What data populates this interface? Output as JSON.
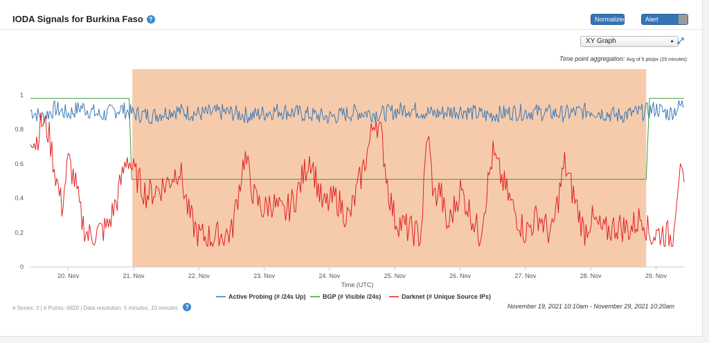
{
  "header": {
    "title": "IODA Signals for Burkina Faso",
    "normalized_label": "Normalized",
    "alert_bands_label": "Alert Bands"
  },
  "controls": {
    "graph_type": "XY Graph",
    "aggregation_label": "Time point aggregation:",
    "aggregation_value": "Avg of 5 pts/px (25 minutes)"
  },
  "footer": {
    "series_label": "# Series:",
    "series_count": "3",
    "points_label": "# Points:",
    "points_count": "6820",
    "resolution_label": "Data resolution:",
    "resolution_value": "5 minutes, 10 minutes",
    "date_range": "November 19, 2021 10:10am - November 29, 2021 10:20am"
  },
  "colors": {
    "active_probing": "#3a78b5",
    "bgp": "#3c9a3c",
    "darknet": "#e02020",
    "outage_band": "#f6cbac"
  },
  "chart_data": {
    "type": "line",
    "xlabel": "Time (UTC)",
    "ylabel": "",
    "x_ticks": [
      "20. Nov",
      "21. Nov",
      "22. Nov",
      "23. Nov",
      "24. Nov",
      "25. Nov",
      "26. Nov",
      "27. Nov",
      "28. Nov",
      "29. Nov"
    ],
    "x_tick_days": [
      20,
      21,
      22,
      23,
      24,
      25,
      26,
      27,
      28,
      29
    ],
    "y_ticks": [
      "0",
      "0.2",
      "0.4",
      "0.6",
      "0.8",
      "1"
    ],
    "ylim": [
      0,
      1.15
    ],
    "xlim_days": [
      19.42,
      29.43
    ],
    "grid": false,
    "legend_position": "bottom",
    "outage_band_days": [
      20.98,
      28.85
    ],
    "series": [
      {
        "name": "Active Probing (# /24s Up)",
        "key": "active",
        "x": [
          19.42,
          19.6,
          19.8,
          20.0,
          20.2,
          20.5,
          20.8,
          21.0,
          21.3,
          21.6,
          22.0,
          22.4,
          22.8,
          23.2,
          23.6,
          24.0,
          24.4,
          24.8,
          25.2,
          25.6,
          26.0,
          26.4,
          26.8,
          27.2,
          27.6,
          28.0,
          28.4,
          28.8,
          29.0,
          29.2,
          29.43
        ],
        "y": [
          0.91,
          0.87,
          0.92,
          0.89,
          0.93,
          0.88,
          0.92,
          0.89,
          0.88,
          0.91,
          0.89,
          0.9,
          0.88,
          0.91,
          0.89,
          0.87,
          0.9,
          0.89,
          0.92,
          0.89,
          0.91,
          0.88,
          0.9,
          0.9,
          0.89,
          0.91,
          0.88,
          0.9,
          0.92,
          0.89,
          0.95
        ]
      },
      {
        "name": "BGP (# Visible /24s)",
        "key": "bgp",
        "x": [
          19.42,
          20.93,
          20.97,
          26.3,
          27.35,
          28.85,
          28.9,
          29.43
        ],
        "y": [
          0.98,
          0.98,
          0.51,
          0.51,
          0.51,
          0.51,
          0.98,
          0.98
        ]
      },
      {
        "name": "Darknet (# Unique Source IPs)",
        "key": "darknet",
        "x": [
          19.42,
          19.5,
          19.6,
          19.7,
          19.8,
          19.9,
          20.0,
          20.1,
          20.2,
          20.3,
          20.45,
          20.6,
          20.75,
          20.9,
          21.0,
          21.2,
          21.5,
          21.7,
          21.85,
          22.0,
          22.2,
          22.5,
          22.7,
          22.85,
          23.0,
          23.1,
          23.3,
          23.5,
          23.7,
          23.9,
          24.1,
          24.3,
          24.5,
          24.6,
          24.7,
          24.8,
          24.9,
          25.0,
          25.2,
          25.4,
          25.5,
          25.6,
          25.7,
          25.8,
          26.0,
          26.2,
          26.3,
          26.5,
          26.6,
          26.8,
          27.0,
          27.2,
          27.4,
          27.6,
          27.75,
          27.9,
          28.0,
          28.2,
          28.4,
          28.6,
          28.8,
          28.9,
          29.1,
          29.25,
          29.35,
          29.43
        ],
        "y": [
          0.78,
          0.72,
          0.85,
          0.78,
          0.55,
          0.35,
          0.62,
          0.5,
          0.28,
          0.18,
          0.2,
          0.23,
          0.4,
          0.65,
          0.55,
          0.42,
          0.48,
          0.58,
          0.3,
          0.18,
          0.17,
          0.2,
          0.65,
          0.4,
          0.33,
          0.38,
          0.3,
          0.42,
          0.65,
          0.35,
          0.4,
          0.28,
          0.55,
          0.7,
          0.88,
          0.75,
          0.45,
          0.28,
          0.22,
          0.18,
          0.8,
          0.4,
          0.45,
          0.22,
          0.45,
          0.28,
          0.18,
          0.66,
          0.55,
          0.35,
          0.2,
          0.3,
          0.18,
          0.6,
          0.4,
          0.2,
          0.28,
          0.2,
          0.24,
          0.22,
          0.3,
          0.18,
          0.2,
          0.17,
          0.55,
          0.45
        ]
      }
    ]
  }
}
